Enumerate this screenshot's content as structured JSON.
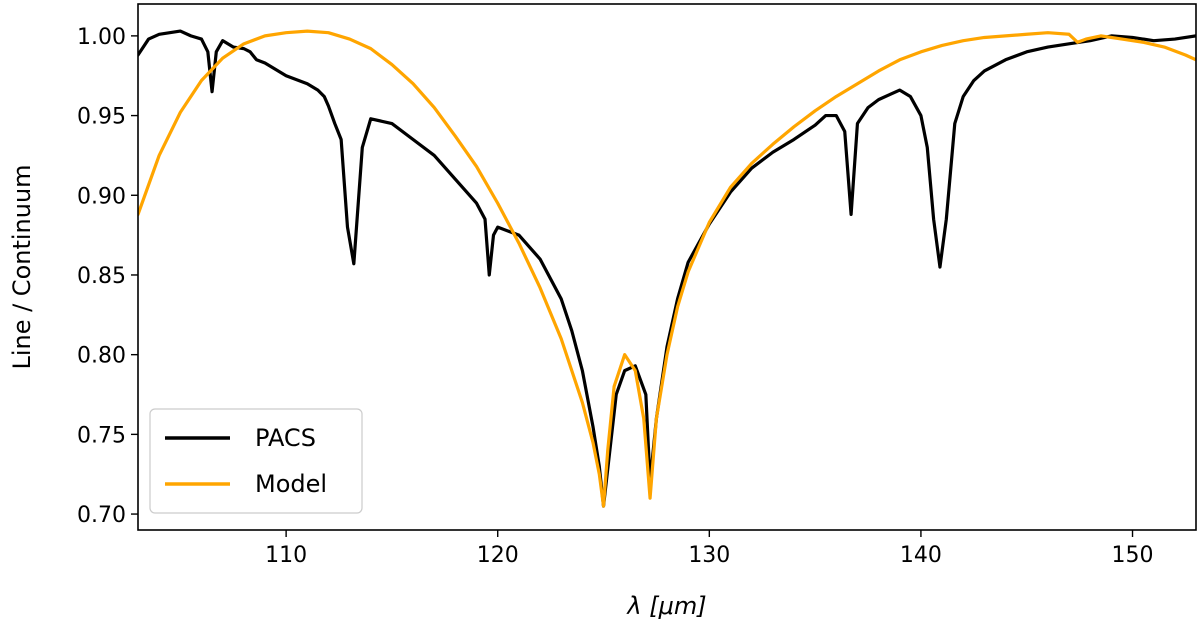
{
  "chart_data": {
    "type": "line",
    "xlabel": "λ [μm]",
    "ylabel": "Line / Continuum",
    "xlim": [
      103,
      153
    ],
    "ylim": [
      0.69,
      1.02
    ],
    "xticks": [
      110,
      120,
      130,
      140,
      150
    ],
    "yticks": [
      0.7,
      0.75,
      0.8,
      0.85,
      0.9,
      0.95,
      1.0
    ],
    "grid": false,
    "legend": {
      "position": "lower-left"
    },
    "series": [
      {
        "name": "PACS",
        "color": "#000000",
        "x": [
          103.0,
          103.5,
          104.0,
          104.5,
          105.0,
          105.5,
          106.0,
          106.3,
          106.5,
          106.7,
          107.0,
          107.5,
          108.0,
          108.3,
          108.6,
          109.0,
          110.0,
          111.0,
          111.5,
          111.8,
          112.0,
          112.3,
          112.6,
          112.9,
          113.2,
          113.6,
          114.0,
          115.0,
          116.0,
          117.0,
          118.0,
          119.0,
          119.4,
          119.6,
          119.8,
          120.0,
          121.0,
          122.0,
          123.0,
          123.5,
          124.0,
          124.5,
          124.8,
          125.0,
          125.3,
          125.6,
          126.0,
          126.5,
          127.0,
          127.2,
          127.5,
          128.0,
          128.5,
          129.0,
          130.0,
          131.0,
          132.0,
          133.0,
          134.0,
          135.0,
          135.5,
          136.0,
          136.4,
          136.7,
          137.0,
          137.5,
          138.0,
          138.5,
          139.0,
          139.5,
          140.0,
          140.3,
          140.6,
          140.9,
          141.2,
          141.6,
          142.0,
          142.5,
          143.0,
          144.0,
          145.0,
          146.0,
          147.0,
          148.0,
          149.0,
          150.0,
          151.0,
          152.0,
          153.0
        ],
        "y": [
          0.988,
          0.998,
          1.001,
          1.002,
          1.003,
          1.0,
          0.998,
          0.99,
          0.965,
          0.99,
          0.997,
          0.993,
          0.992,
          0.99,
          0.985,
          0.983,
          0.975,
          0.97,
          0.966,
          0.962,
          0.956,
          0.945,
          0.935,
          0.88,
          0.857,
          0.93,
          0.948,
          0.945,
          0.935,
          0.925,
          0.91,
          0.895,
          0.885,
          0.85,
          0.875,
          0.88,
          0.875,
          0.86,
          0.835,
          0.815,
          0.79,
          0.755,
          0.73,
          0.705,
          0.74,
          0.775,
          0.79,
          0.793,
          0.775,
          0.72,
          0.76,
          0.805,
          0.835,
          0.858,
          0.882,
          0.902,
          0.917,
          0.927,
          0.935,
          0.944,
          0.95,
          0.95,
          0.94,
          0.888,
          0.945,
          0.955,
          0.96,
          0.963,
          0.966,
          0.962,
          0.95,
          0.93,
          0.885,
          0.855,
          0.885,
          0.945,
          0.962,
          0.972,
          0.978,
          0.985,
          0.99,
          0.993,
          0.995,
          0.997,
          1.0,
          0.999,
          0.997,
          0.998,
          1.0
        ]
      },
      {
        "name": "Model",
        "color": "#FFA500",
        "x": [
          103.0,
          104.0,
          105.0,
          106.0,
          107.0,
          108.0,
          109.0,
          110.0,
          111.0,
          112.0,
          113.0,
          114.0,
          115.0,
          116.0,
          117.0,
          118.0,
          119.0,
          120.0,
          121.0,
          122.0,
          123.0,
          123.5,
          124.0,
          124.5,
          124.8,
          125.0,
          125.2,
          125.5,
          126.0,
          126.5,
          126.9,
          127.2,
          127.5,
          128.0,
          128.5,
          129.0,
          130.0,
          131.0,
          132.0,
          133.0,
          134.0,
          135.0,
          136.0,
          137.0,
          138.0,
          139.0,
          140.0,
          141.0,
          142.0,
          143.0,
          144.0,
          145.0,
          146.0,
          147.0,
          147.4,
          147.8,
          148.5,
          149.5,
          150.5,
          151.5,
          152.5,
          153.0
        ],
        "y": [
          0.888,
          0.925,
          0.952,
          0.972,
          0.986,
          0.995,
          1.0,
          1.002,
          1.003,
          1.002,
          0.998,
          0.992,
          0.982,
          0.97,
          0.955,
          0.937,
          0.918,
          0.895,
          0.87,
          0.842,
          0.81,
          0.79,
          0.77,
          0.745,
          0.725,
          0.705,
          0.74,
          0.78,
          0.8,
          0.79,
          0.76,
          0.71,
          0.76,
          0.8,
          0.83,
          0.852,
          0.883,
          0.905,
          0.92,
          0.932,
          0.943,
          0.953,
          0.962,
          0.97,
          0.978,
          0.985,
          0.99,
          0.994,
          0.997,
          0.999,
          1.0,
          1.001,
          1.002,
          1.001,
          0.996,
          0.998,
          1.0,
          0.998,
          0.996,
          0.993,
          0.988,
          0.985
        ]
      }
    ]
  }
}
